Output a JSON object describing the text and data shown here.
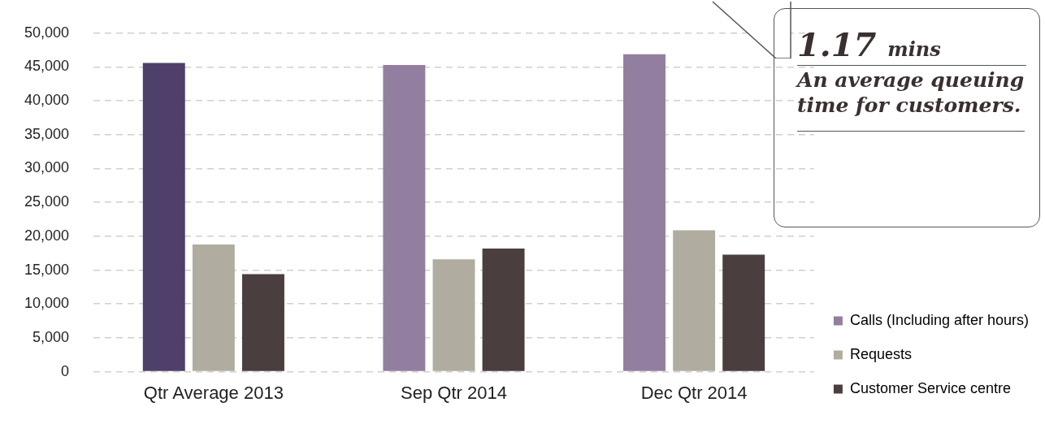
{
  "chart_data": {
    "type": "bar",
    "categories": [
      "Qtr Average 2013",
      "Sep Qtr 2014",
      "Dec Qtr 2014"
    ],
    "series": [
      {
        "name": "Calls (Including after hours)",
        "color": "#927fa0",
        "colors": [
          "#4e3f6b",
          "#927fa0",
          "#927fa0"
        ],
        "values": [
          45600,
          45300,
          46900
        ]
      },
      {
        "name": "Requests",
        "color": "#b0ada0",
        "colors": [
          "#b0ada0",
          "#b0ada0",
          "#b0ada0"
        ],
        "values": [
          18800,
          16600,
          20900
        ]
      },
      {
        "name": "Customer Service centre",
        "color": "#4a3e3e",
        "colors": [
          "#4a3e3e",
          "#4a3e3e",
          "#4a3e3e"
        ],
        "values": [
          14400,
          18200,
          17300
        ]
      }
    ],
    "ylim": [
      0,
      50000
    ],
    "yticks": [
      {
        "value": 0,
        "label": "0"
      },
      {
        "value": 5000,
        "label": "5,000"
      },
      {
        "value": 10000,
        "label": "10,000"
      },
      {
        "value": 15000,
        "label": "15,000"
      },
      {
        "value": 20000,
        "label": "20,000"
      },
      {
        "value": 25000,
        "label": "25,000"
      },
      {
        "value": 30000,
        "label": "30,000"
      },
      {
        "value": 35000,
        "label": "35,000"
      },
      {
        "value": 40000,
        "label": "40,000"
      },
      {
        "value": 45000,
        "label": "45,000"
      },
      {
        "value": 50000,
        "label": "50,000"
      }
    ],
    "grid": "y",
    "legend": "bottom right",
    "annotations": [
      "1.17 mins",
      "An average queuing time for customers."
    ]
  }
}
